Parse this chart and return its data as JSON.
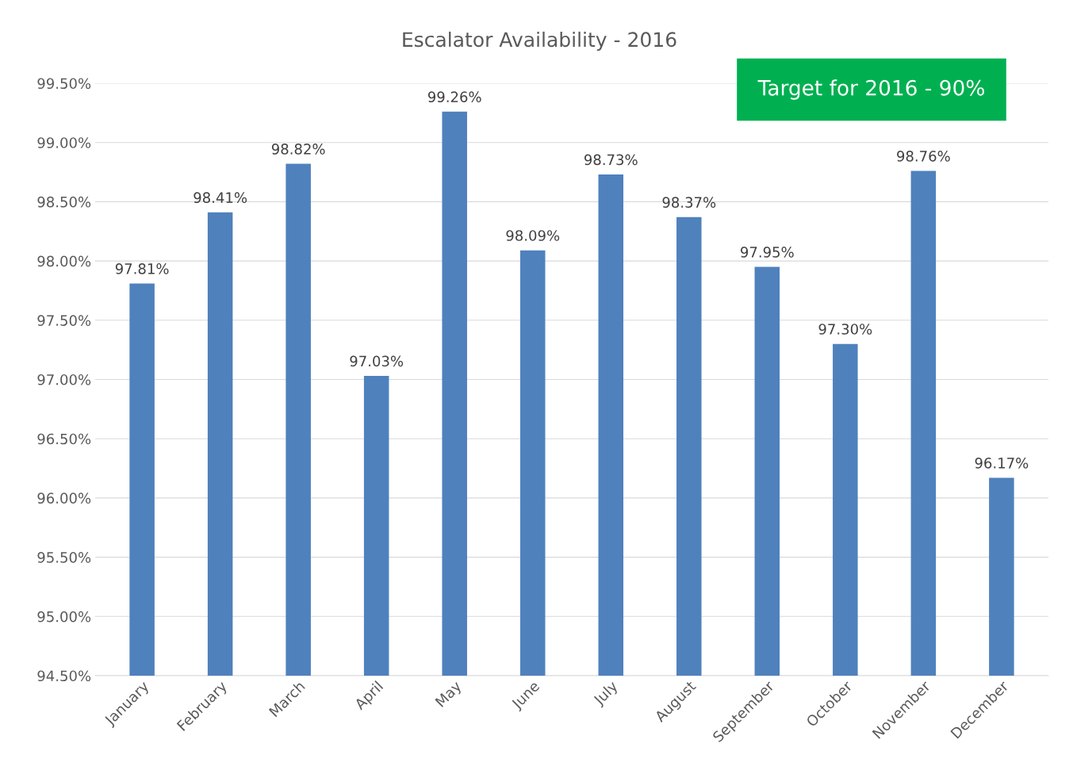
{
  "chart_data": {
    "type": "bar",
    "title": "Escalator Availability - 2016",
    "categories": [
      "January",
      "February",
      "March",
      "April",
      "May",
      "June",
      "July",
      "August",
      "September",
      "October",
      "November",
      "December"
    ],
    "values": [
      97.81,
      98.41,
      98.82,
      97.03,
      99.26,
      98.09,
      98.73,
      98.37,
      97.95,
      97.3,
      98.76,
      96.17
    ],
    "value_labels": [
      "97.81%",
      "98.41%",
      "98.82%",
      "97.03%",
      "99.26%",
      "98.09%",
      "98.73%",
      "98.37%",
      "97.95%",
      "97.30%",
      "98.76%",
      "96.17%"
    ],
    "color": "#4f81bd",
    "ylim": [
      94.5,
      99.5
    ],
    "yticks": [
      {
        "value": 94.5,
        "label": "94.50%"
      },
      {
        "value": 95.0,
        "label": "95.00%"
      },
      {
        "value": 95.5,
        "label": "95.50%"
      },
      {
        "value": 96.0,
        "label": "96.00%"
      },
      {
        "value": 96.5,
        "label": "96.50%"
      },
      {
        "value": 97.0,
        "label": "97.00%"
      },
      {
        "value": 97.5,
        "label": "97.50%"
      },
      {
        "value": 98.0,
        "label": "98.00%"
      },
      {
        "value": 98.5,
        "label": "98.50%"
      },
      {
        "value": 99.0,
        "label": "99.00%"
      },
      {
        "value": 99.5,
        "label": "99.50%"
      }
    ],
    "grid": "y",
    "legend": false,
    "annotations": [
      "Target for 2016 - 90%"
    ]
  }
}
